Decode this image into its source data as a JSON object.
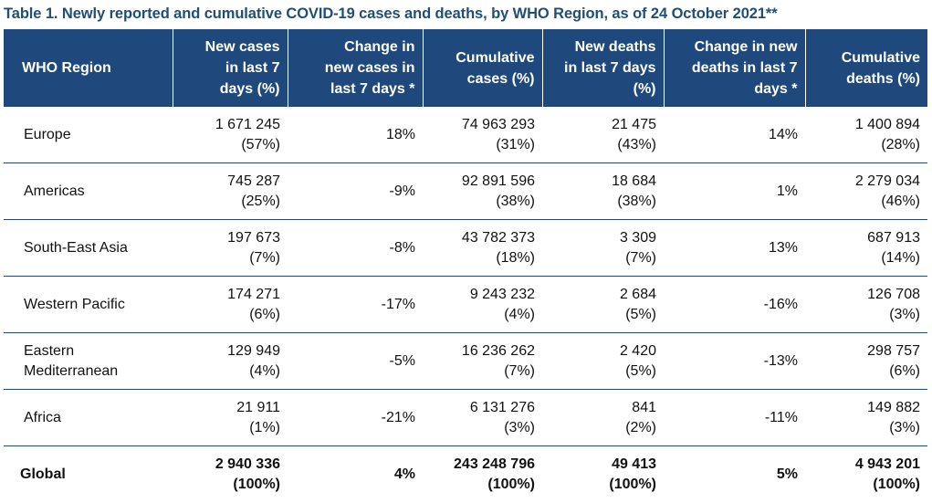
{
  "caption": "Table 1. Newly reported and cumulative COVID-19 cases and deaths, by WHO Region, as of 24 October 2021**",
  "headers": [
    [
      "WHO Region"
    ],
    [
      "New cases",
      "in last 7",
      "days (%)"
    ],
    [
      "Change in",
      "new cases in",
      "last 7 days *"
    ],
    [
      "Cumulative",
      "cases (%)"
    ],
    [
      "New deaths",
      "in last 7 days",
      "(%)"
    ],
    [
      "Change in new",
      "deaths in last 7",
      "days *"
    ],
    [
      "Cumulative",
      "deaths (%)"
    ]
  ],
  "rows": [
    {
      "region": [
        "Europe"
      ],
      "new_cases": [
        "1 671 245",
        "(57%)"
      ],
      "change_cases": "18%",
      "cum_cases": [
        "74 963 293",
        "(31%)"
      ],
      "new_deaths": [
        "21 475",
        "(43%)"
      ],
      "change_deaths": "14%",
      "cum_deaths": [
        "1 400 894",
        "(28%)"
      ]
    },
    {
      "region": [
        "Americas"
      ],
      "new_cases": [
        "745 287",
        "(25%)"
      ],
      "change_cases": "-9%",
      "cum_cases": [
        "92 891 596",
        "(38%)"
      ],
      "new_deaths": [
        "18 684",
        "(38%)"
      ],
      "change_deaths": "1%",
      "cum_deaths": [
        "2 279 034",
        "(46%)"
      ]
    },
    {
      "region": [
        "South-East Asia"
      ],
      "new_cases": [
        "197 673",
        "(7%)"
      ],
      "change_cases": "-8%",
      "cum_cases": [
        "43 782 373",
        "(18%)"
      ],
      "new_deaths": [
        "3 309",
        "(7%)"
      ],
      "change_deaths": "13%",
      "cum_deaths": [
        "687 913",
        "(14%)"
      ]
    },
    {
      "region": [
        "Western Pacific"
      ],
      "new_cases": [
        "174 271",
        "(6%)"
      ],
      "change_cases": "-17%",
      "cum_cases": [
        "9 243 232",
        "(4%)"
      ],
      "new_deaths": [
        "2 684",
        "(5%)"
      ],
      "change_deaths": "-16%",
      "cum_deaths": [
        "126 708",
        "(3%)"
      ]
    },
    {
      "region": [
        "Eastern",
        "Mediterranean"
      ],
      "new_cases": [
        "129 949",
        "(4%)"
      ],
      "change_cases": "-5%",
      "cum_cases": [
        "16 236 262",
        "(7%)"
      ],
      "new_deaths": [
        "2 420",
        "(5%)"
      ],
      "change_deaths": "-13%",
      "cum_deaths": [
        "298 757",
        "(6%)"
      ]
    },
    {
      "region": [
        "Africa"
      ],
      "new_cases": [
        "21 911",
        "(1%)"
      ],
      "change_cases": "-21%",
      "cum_cases": [
        "6 131 276",
        "(3%)"
      ],
      "new_deaths": [
        "841",
        "(2%)"
      ],
      "change_deaths": "-11%",
      "cum_deaths": [
        "149 882",
        "(3%)"
      ]
    },
    {
      "region": [
        "Global"
      ],
      "new_cases": [
        "2 940 336",
        "(100%)"
      ],
      "change_cases": "4%",
      "cum_cases": [
        "243 248 796",
        "(100%)"
      ],
      "new_deaths": [
        "49 413",
        "(100%)"
      ],
      "change_deaths": "5%",
      "cum_deaths": [
        "4 943 201",
        "(100%)"
      ]
    }
  ],
  "colors": {
    "header_bg": "#1f497d",
    "caption_text": "#1f4e79",
    "row_divider": "#1f497d"
  }
}
